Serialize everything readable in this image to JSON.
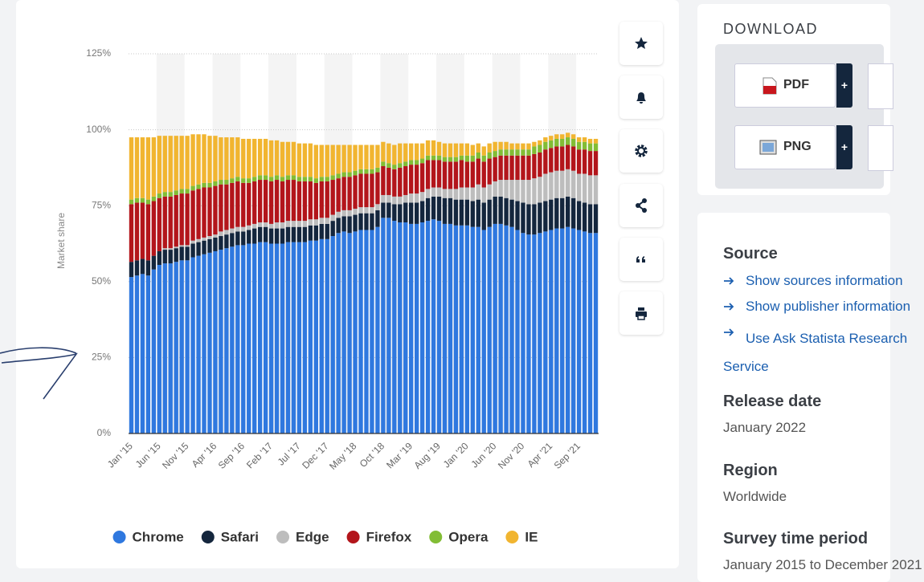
{
  "chart_data": {
    "type": "stacked-bar",
    "y_label": "Market share",
    "categories": [
      "Jan '15",
      null,
      null,
      null,
      null,
      "Jun '15",
      null,
      null,
      null,
      null,
      "Nov '15",
      null,
      null,
      null,
      null,
      "Apr '16",
      null,
      null,
      null,
      null,
      "Sep '16",
      null,
      null,
      null,
      null,
      "Feb '17",
      null,
      null,
      null,
      null,
      "Jul '17",
      null,
      null,
      null,
      null,
      "Dec '17",
      null,
      null,
      null,
      null,
      "May '18",
      null,
      null,
      null,
      null,
      "Oct '18",
      null,
      null,
      null,
      null,
      "Mar '19",
      null,
      null,
      null,
      null,
      "Aug '19",
      null,
      null,
      null,
      null,
      "Jan '20",
      null,
      null,
      null,
      null,
      "Jun '20",
      null,
      null,
      null,
      null,
      "Nov '20",
      null,
      null,
      null,
      null,
      "Apr '21",
      null,
      null,
      null,
      null,
      "Sep '21",
      null,
      null,
      null
    ],
    "series": [
      {
        "name": "Chrome",
        "color": "#2f78df",
        "values": [
          51.5,
          52,
          52.5,
          52,
          54,
          55.5,
          56,
          56,
          56.5,
          57,
          57,
          58,
          58.5,
          59,
          59.5,
          60,
          60.5,
          61,
          61.5,
          62,
          62,
          62.5,
          62.5,
          63,
          63,
          62.5,
          62.5,
          62.5,
          63,
          63,
          63,
          63,
          63.5,
          63.5,
          64,
          64,
          65,
          66,
          66.5,
          66,
          66.5,
          67,
          67,
          67,
          68,
          71,
          71,
          70,
          69.5,
          69.5,
          69,
          69,
          69.5,
          70,
          70.5,
          70,
          69,
          69,
          68.5,
          68.5,
          68.5,
          68,
          68,
          67,
          68,
          69,
          69,
          68.5,
          68,
          67,
          66,
          65.5,
          65.5,
          66,
          66.5,
          67,
          67.5,
          67.5,
          68,
          67.5,
          67,
          66.5,
          66,
          66
        ]
      },
      {
        "name": "Safari",
        "color": "#14263d",
        "values": [
          5,
          5,
          5,
          5,
          4.5,
          4.5,
          4.5,
          4.5,
          4.5,
          4.5,
          4.5,
          4.5,
          4.5,
          4.5,
          4.5,
          4.5,
          4.5,
          4.5,
          4.5,
          4.5,
          4.5,
          4.5,
          5,
          5,
          5,
          5,
          5,
          5,
          5,
          5,
          5,
          5,
          5,
          5,
          5,
          5,
          5,
          5,
          5,
          5.5,
          5.5,
          5.5,
          5.5,
          5.5,
          5.5,
          5,
          5,
          5.5,
          6,
          6.5,
          7,
          7,
          7,
          7.5,
          7.5,
          8,
          8.5,
          8.5,
          8.5,
          8.5,
          8.5,
          8.5,
          9,
          9,
          9,
          9,
          9,
          9,
          9,
          9.5,
          10,
          10,
          10,
          10,
          10,
          10,
          10,
          10,
          10,
          10,
          9.5,
          9.5,
          9.5,
          9.5
        ]
      },
      {
        "name": "Edge",
        "color": "#bdbdbd",
        "values": [
          0,
          0,
          0,
          0,
          0,
          0,
          0.5,
          0.5,
          0.5,
          0.5,
          0.5,
          1,
          1,
          1,
          1,
          1,
          1.5,
          1.5,
          1.5,
          1.5,
          1.5,
          1.5,
          1.5,
          1.5,
          1.5,
          1.5,
          2,
          2,
          2,
          2,
          2,
          2,
          2,
          2,
          2,
          2,
          2,
          2,
          2,
          2,
          2,
          2,
          2,
          2,
          2,
          2.5,
          2.5,
          2.5,
          2.5,
          2.5,
          3,
          3,
          3,
          3,
          3,
          3,
          3,
          3,
          3.5,
          4,
          4,
          4.5,
          5,
          5,
          5,
          5,
          5.5,
          6,
          6.5,
          7,
          7.5,
          8,
          8.5,
          8.5,
          9,
          9,
          9,
          9,
          9,
          9,
          9,
          9.5,
          9.5,
          9.5
        ]
      },
      {
        "name": "Firefox",
        "color": "#b3151b",
        "values": [
          19,
          19,
          18.5,
          18.5,
          18,
          17.5,
          17,
          17,
          17,
          17,
          17,
          16.5,
          16.5,
          16.5,
          16,
          16,
          15.5,
          15,
          15,
          15,
          14.5,
          14,
          14,
          14,
          14,
          14,
          14,
          13.5,
          13.5,
          13.5,
          13,
          13,
          12.5,
          12,
          12,
          12,
          11.5,
          11,
          11,
          11,
          11,
          11,
          11,
          11,
          10.5,
          9.5,
          9,
          9,
          9.5,
          9.5,
          9.5,
          9.5,
          9.5,
          9.5,
          9,
          9,
          9,
          9,
          9,
          9,
          8.5,
          8.5,
          8.5,
          8.5,
          8.5,
          8,
          8,
          8,
          8,
          8,
          8,
          8,
          8,
          8,
          8,
          8,
          8,
          8,
          8,
          8,
          8,
          8,
          8,
          8
        ]
      },
      {
        "name": "Opera",
        "color": "#82bd35",
        "values": [
          1.5,
          1.5,
          1.5,
          1.5,
          1.5,
          1.5,
          1.5,
          1.5,
          1.5,
          1.5,
          1.5,
          1.5,
          1.5,
          1.5,
          1.5,
          1.5,
          1.5,
          1.5,
          1.5,
          1.5,
          1.5,
          1.5,
          1.5,
          1.5,
          1.5,
          1.5,
          1.5,
          1.5,
          1.5,
          1.5,
          1.5,
          1.5,
          1.5,
          1.5,
          1.5,
          1.5,
          1.5,
          1.5,
          1.5,
          1.5,
          1.5,
          1.5,
          1.5,
          1.5,
          1.5,
          1.5,
          1.5,
          1.5,
          1.5,
          1.5,
          1.5,
          1.5,
          1.5,
          1.5,
          1.5,
          1.5,
          1.5,
          1.5,
          1.5,
          1.5,
          2,
          2,
          2,
          2,
          2,
          2,
          2,
          2,
          2,
          2,
          2,
          2,
          2.5,
          2.5,
          2.5,
          2.5,
          2.5,
          2.5,
          2.5,
          2.5,
          2.5,
          2.5,
          2.5,
          2.5
        ]
      },
      {
        "name": "IE",
        "color": "#f1b530",
        "values": [
          20.5,
          20,
          20,
          20.5,
          19.5,
          19,
          18.5,
          18.5,
          18,
          17.5,
          17.5,
          17,
          16.5,
          16,
          15.5,
          15,
          14,
          14,
          13.5,
          13,
          13,
          13,
          12.5,
          12,
          12,
          12,
          11.5,
          11.5,
          11,
          11,
          11,
          11,
          11,
          11,
          10.5,
          10.5,
          10,
          9.5,
          9,
          9,
          8.5,
          8,
          8,
          8,
          7.5,
          6.5,
          6.5,
          6.5,
          6.5,
          6,
          5.5,
          5.5,
          5,
          5,
          5,
          4.5,
          4.5,
          4.5,
          4.5,
          4,
          4,
          3.5,
          3,
          3,
          3,
          3,
          2.5,
          2.5,
          2,
          2,
          2,
          2,
          1.5,
          1.5,
          1.5,
          1.5,
          1.5,
          1.5,
          1.5,
          1.5,
          1.5,
          1.5,
          1.5,
          1.5
        ]
      }
    ],
    "ylim": [
      0,
      125
    ],
    "yticks": [
      {
        "value": 0,
        "label": "0%"
      },
      {
        "value": 25,
        "label": "25%"
      },
      {
        "value": 50,
        "label": "50%"
      },
      {
        "value": 75,
        "label": "75%"
      },
      {
        "value": 100,
        "label": "100%"
      },
      {
        "value": 125,
        "label": "125%"
      }
    ],
    "grid": true,
    "legend": "bottom"
  },
  "download": {
    "title": "DOWNLOAD",
    "buttons": [
      {
        "label": "PDF",
        "plus": "+"
      },
      {
        "label": "PNG",
        "plus": "+"
      }
    ]
  },
  "info": {
    "source": "Source",
    "links": [
      "Show sources information",
      "Show publisher information",
      "Use Ask Statista Research Service"
    ],
    "release_label": "Release date",
    "release": "January 2022",
    "region_label": "Region",
    "region": "Worldwide",
    "period_label": "Survey time period",
    "period": "January 2015 to December 2021"
  }
}
